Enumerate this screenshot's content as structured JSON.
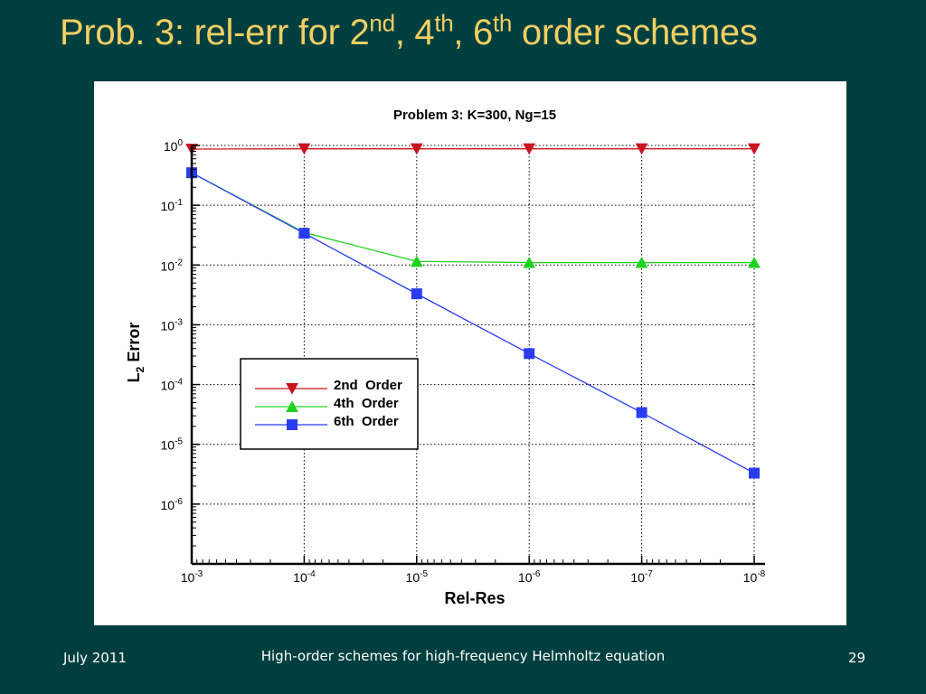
{
  "slide": {
    "title_parts": [
      "Prob. 3: rel-err for 2",
      "nd",
      ", 4",
      "th",
      ", 6",
      "th",
      " order schemes"
    ],
    "footer_left": "July 2011",
    "footer_center": "High-order schemes for high-frequency Helmholtz equation",
    "footer_right": "29"
  },
  "chart_data": {
    "type": "line",
    "title": "Problem 3:  K=300,  Ng=15",
    "xlabel": "Rel-Res",
    "ylabel": {
      "main": "L",
      "sub": "2",
      "rest": " Error"
    },
    "x_scale": "log",
    "x_reversed": true,
    "y_scale": "log",
    "x": [
      0.001,
      0.0001,
      1e-05,
      1e-06,
      1e-07,
      1e-08
    ],
    "xlim": [
      0.001,
      1e-08
    ],
    "ylim": [
      1e-07,
      1
    ],
    "x_ticks": [
      {
        "base": "10",
        "exp": "-3",
        "value": 0.001
      },
      {
        "base": "10",
        "exp": "-4",
        "value": 0.0001
      },
      {
        "base": "10",
        "exp": "-5",
        "value": 1e-05
      },
      {
        "base": "10",
        "exp": "-6",
        "value": 1e-06
      },
      {
        "base": "10",
        "exp": "-7",
        "value": 1e-07
      },
      {
        "base": "10",
        "exp": "-8",
        "value": 1e-08
      }
    ],
    "y_ticks": [
      {
        "base": "10",
        "exp": "0",
        "value": 1
      },
      {
        "base": "10",
        "exp": "-1",
        "value": 0.1
      },
      {
        "base": "10",
        "exp": "-2",
        "value": 0.01
      },
      {
        "base": "10",
        "exp": "-3",
        "value": 0.001
      },
      {
        "base": "10",
        "exp": "-4",
        "value": 0.0001
      },
      {
        "base": "10",
        "exp": "-5",
        "value": 1e-05
      },
      {
        "base": "10",
        "exp": "-6",
        "value": 1e-06
      }
    ],
    "grid": true,
    "legend_position": "middle-left",
    "series": [
      {
        "name": "2nd  Order",
        "color": "#c8141e",
        "marker": "triangle-down",
        "values": [
          0.87,
          0.88,
          0.88,
          0.88,
          0.88,
          0.88
        ]
      },
      {
        "name": "4th  Order",
        "color": "#1ed21e",
        "marker": "triangle-up",
        "values": [
          0.35,
          0.035,
          0.0115,
          0.011,
          0.011,
          0.011
        ]
      },
      {
        "name": "6th  Order",
        "color": "#2a3cf0",
        "marker": "square",
        "values": [
          0.35,
          0.034,
          0.0033,
          0.00033,
          3.4e-05,
          3.3e-06
        ]
      }
    ]
  }
}
